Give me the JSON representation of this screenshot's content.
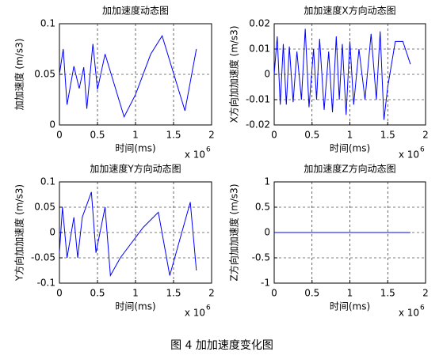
{
  "chart_data": [
    {
      "type": "line",
      "title": "加加速度动态图",
      "xlabel": "时间(ms)",
      "ylabel": "加加速度 (m/s3)",
      "x_scale_label": "x 10",
      "x_scale_exponent": "6",
      "x": [
        0,
        0.05,
        0.1,
        0.19,
        0.26,
        0.32,
        0.36,
        0.44,
        0.5,
        0.6,
        0.85,
        1.0,
        1.2,
        1.35,
        1.65,
        1.8
      ],
      "values": [
        0.05,
        0.075,
        0.02,
        0.058,
        0.036,
        0.057,
        0.016,
        0.08,
        0.035,
        0.07,
        0.008,
        0.03,
        0.07,
        0.088,
        0.014,
        0.075
      ],
      "color": "#0000ff",
      "xlim": [
        0,
        2
      ],
      "xticks": [
        0,
        0.5,
        1,
        1.5,
        2
      ],
      "ylim": [
        0,
        0.1
      ],
      "yticks": [
        0,
        0.05,
        0.1
      ],
      "grid": true
    },
    {
      "type": "line",
      "title": "加加速度X方向动态图",
      "xlabel": "时间(ms)",
      "ylabel": "X方向加加速度 (m/s3)",
      "x_scale_label": "x 10",
      "x_scale_exponent": "6",
      "x": [
        0,
        0.04,
        0.08,
        0.12,
        0.16,
        0.2,
        0.25,
        0.3,
        0.36,
        0.41,
        0.46,
        0.52,
        0.56,
        0.6,
        0.66,
        0.72,
        0.77,
        0.82,
        0.86,
        0.9,
        0.95,
        1.0,
        1.05,
        1.12,
        1.2,
        1.28,
        1.35,
        1.4,
        1.45,
        1.5,
        1.6,
        1.7,
        1.8
      ],
      "values": [
        0.0,
        0.015,
        -0.012,
        0.012,
        -0.012,
        0.011,
        -0.011,
        0.009,
        -0.01,
        0.018,
        -0.013,
        0.01,
        -0.01,
        0.014,
        -0.014,
        0.009,
        -0.015,
        0.015,
        -0.01,
        0.012,
        -0.016,
        0.013,
        -0.012,
        0.01,
        -0.01,
        0.016,
        -0.01,
        0.017,
        -0.018,
        -0.005,
        0.013,
        0.013,
        0.004
      ],
      "color": "#0000ff",
      "xlim": [
        0,
        2
      ],
      "xticks": [
        0,
        0.5,
        1,
        1.5,
        2
      ],
      "ylim": [
        -0.02,
        0.02
      ],
      "yticks": [
        -0.02,
        -0.01,
        0,
        0.01,
        0.02
      ],
      "grid": true
    },
    {
      "type": "line",
      "title": "加加速度Y方向动态图",
      "xlabel": "时间(ms)",
      "ylabel": "Y方向加加速度 (m/s3)",
      "x_scale_label": "x 10",
      "x_scale_exponent": "6",
      "x": [
        0,
        0.04,
        0.1,
        0.19,
        0.24,
        0.3,
        0.42,
        0.48,
        0.6,
        0.67,
        0.8,
        1.1,
        1.3,
        1.45,
        1.72,
        1.8
      ],
      "values": [
        -0.04,
        0.05,
        -0.05,
        0.03,
        -0.05,
        0.03,
        0.08,
        -0.04,
        0.05,
        -0.085,
        -0.05,
        0.01,
        0.04,
        -0.085,
        0.06,
        -0.075
      ],
      "color": "#0000ff",
      "xlim": [
        0,
        2
      ],
      "xticks": [
        0,
        0.5,
        1,
        1.5,
        2
      ],
      "ylim": [
        -0.1,
        0.1
      ],
      "yticks": [
        -0.1,
        -0.05,
        0,
        0.05,
        0.1
      ],
      "grid": true
    },
    {
      "type": "line",
      "title": "加加速度Z方向动态图",
      "xlabel": "时间(ms)",
      "ylabel": "Z方向加加速度 (m/s3)",
      "x_scale_label": "x 10",
      "x_scale_exponent": "6",
      "x": [
        0,
        1.8
      ],
      "values": [
        0,
        0
      ],
      "color": "#0000ff",
      "xlim": [
        0,
        2
      ],
      "xticks": [
        0,
        0.5,
        1,
        1.5,
        2
      ],
      "ylim": [
        -1,
        1
      ],
      "yticks": [
        -1,
        -0.5,
        0,
        0.5,
        1
      ],
      "grid": true
    }
  ],
  "caption": "图 4 加加速度变化图"
}
